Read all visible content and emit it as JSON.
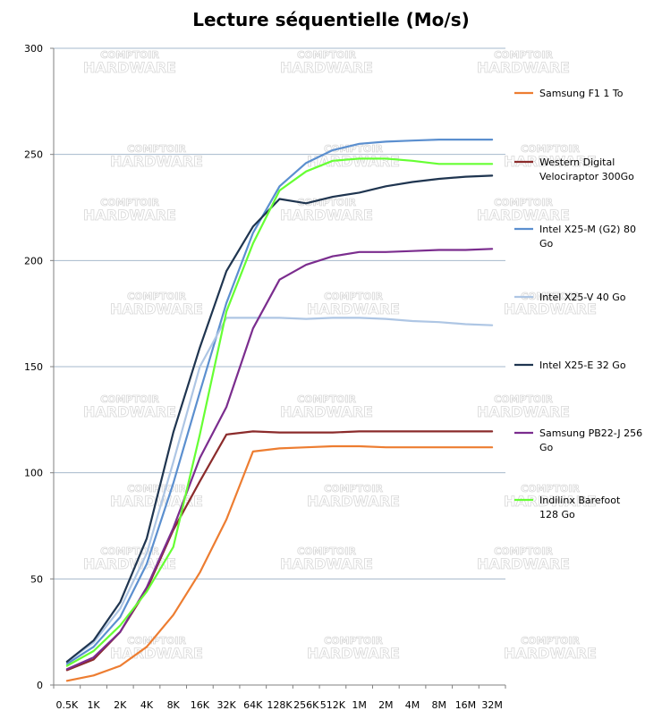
{
  "chart_data": {
    "type": "line",
    "title": "Lecture séquentielle (Mo/s)",
    "xlabel": "",
    "ylabel": "",
    "ylim": [
      0,
      300
    ],
    "yticks": [
      0,
      50,
      100,
      150,
      200,
      250,
      300
    ],
    "grid": "horizontal",
    "legend": "right",
    "categories": [
      "0.5K",
      "1K",
      "2K",
      "4K",
      "8K",
      "16K",
      "32K",
      "64K",
      "128K",
      "256K",
      "512K",
      "1M",
      "2M",
      "4M",
      "8M",
      "16M",
      "32M"
    ],
    "series": [
      {
        "name": "Samsung F1 1 To",
        "color": "#ed7d31",
        "values": [
          2,
          4.5,
          9,
          18,
          33,
          53,
          78,
          110,
          111.5,
          112,
          112.5,
          112.5,
          112,
          112,
          112,
          112,
          112
        ]
      },
      {
        "name": "Western Digital Velociraptor 300Go",
        "color": "#8b2b2b",
        "values": [
          7,
          12,
          25,
          45,
          73,
          96,
          118,
          119.5,
          119,
          119,
          119,
          119.5,
          119.5,
          119.5,
          119.5,
          119.5,
          119.5
        ]
      },
      {
        "name": "Intel X25-M (G2) 80 Go",
        "color": "#5b8fcf",
        "values": [
          10,
          18,
          32,
          57,
          95,
          138,
          180,
          213,
          235,
          246,
          252,
          255,
          256,
          256.5,
          257,
          257,
          257
        ]
      },
      {
        "name": "Intel X25-V 40 Go",
        "color": "#aec6e4",
        "values": [
          11,
          20,
          36,
          62,
          105,
          150,
          173,
          173,
          173,
          172.5,
          173,
          173,
          172.5,
          171.5,
          171,
          170,
          169.5
        ]
      },
      {
        "name": "Intel X25-E 32 Go",
        "color": "#1f3550",
        "values": [
          11,
          21,
          39,
          69,
          119,
          159,
          195,
          216,
          229,
          227,
          230,
          232,
          235,
          237,
          238.5,
          239.5,
          240
        ]
      },
      {
        "name": "Samsung PB22-J 256 Go",
        "color": "#7b2d8e",
        "values": [
          7.5,
          13,
          25,
          46,
          74,
          107,
          131,
          168,
          191,
          198,
          202,
          204,
          204,
          204.5,
          205,
          205,
          205.5
        ]
      },
      {
        "name": "Indilinx Barefoot 128 Go",
        "color": "#66ff33",
        "values": [
          9,
          16,
          28,
          44,
          65,
          118,
          176,
          208,
          233,
          242,
          247,
          248,
          248,
          247,
          245.5,
          245.5,
          245.5
        ]
      }
    ]
  },
  "watermark": {
    "line1": "COMPTOIR",
    "line2": "HARDWARE"
  }
}
